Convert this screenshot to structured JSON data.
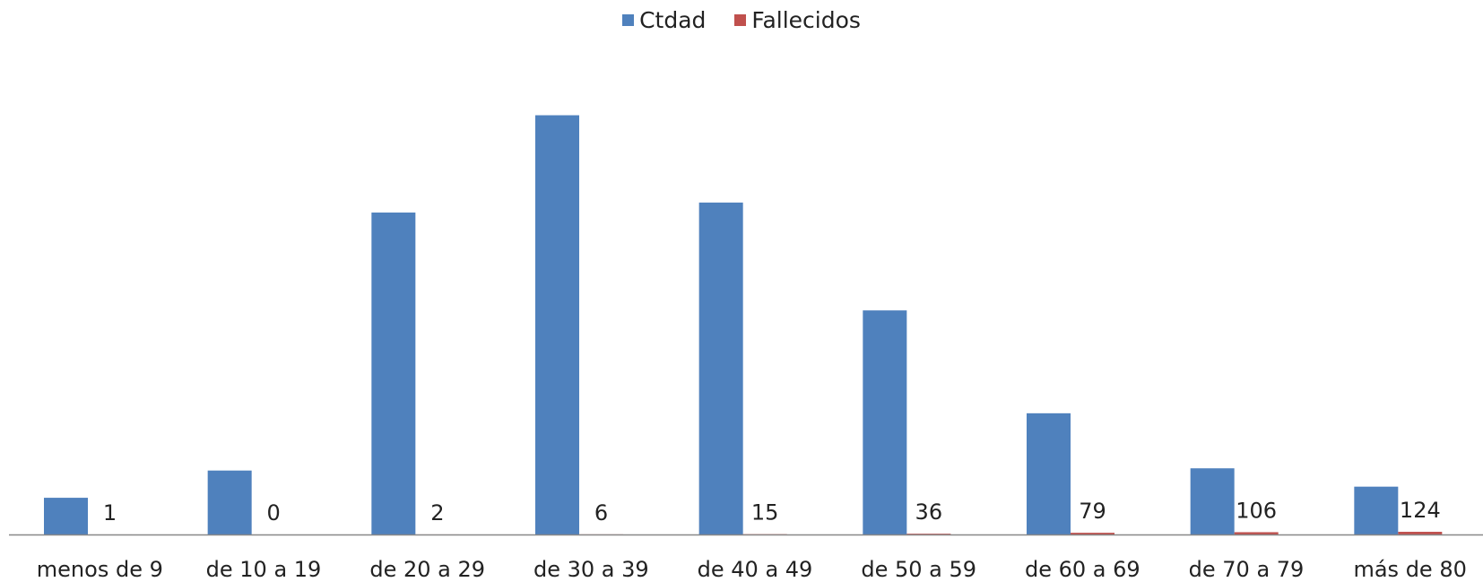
{
  "chart_data": {
    "type": "bar",
    "title": "",
    "xlabel": "",
    "ylabel": "",
    "legend_position": "top-center",
    "grid": false,
    "categories": [
      "menos de 9",
      "de 10 a 19",
      "de 20 a 29",
      "de 30 a 39",
      "de 40 a 49",
      "de 50 a 59",
      "de 60 a 69",
      "de 70 a 79",
      "más de 80"
    ],
    "series": [
      {
        "name": "Ctdad",
        "color": "#4F81BD",
        "values": [
          66,
          115,
          579,
          754,
          597,
          403,
          218,
          119,
          86
        ]
      },
      {
        "name": "Fallecidos",
        "color": "#C0504D",
        "values": [
          1,
          0,
          2,
          6,
          15,
          36,
          79,
          106,
          124
        ],
        "labels": [
          "1",
          "0",
          "2",
          "6",
          "15",
          "36",
          "79",
          "106",
          "124"
        ]
      }
    ],
    "fallecidos_scale_ylim": [
      0,
      20700
    ],
    "ylim": [
      0,
      800
    ]
  }
}
